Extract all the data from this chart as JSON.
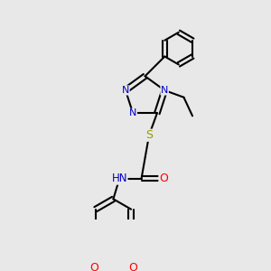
{
  "background_color": "#e8e8e8",
  "bond_color": "#000000",
  "atom_colors": {
    "N": "#0000cc",
    "O": "#ff0000",
    "S": "#999900",
    "H": "#008080",
    "C": "#000000"
  },
  "bond_width": 1.5,
  "figsize": [
    3.0,
    3.0
  ],
  "dpi": 100
}
